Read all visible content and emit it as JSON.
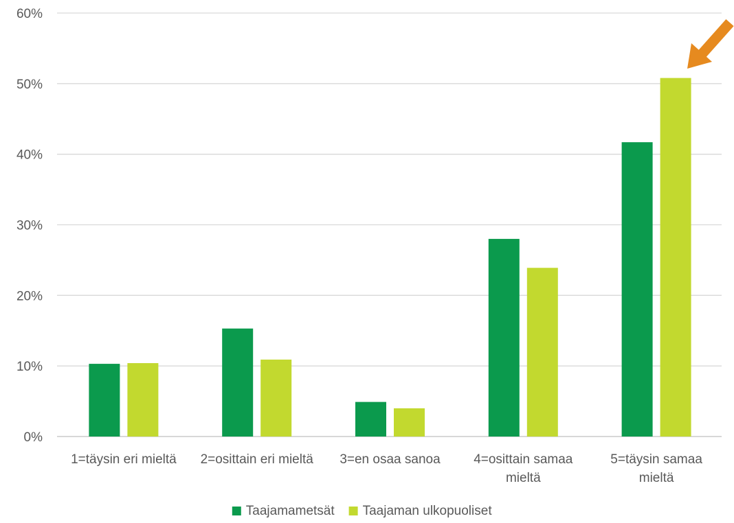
{
  "chart_data": {
    "type": "bar",
    "title": "",
    "xlabel": "",
    "ylabel": "",
    "ylim": [
      0,
      60
    ],
    "yticks": [
      "0%",
      "10%",
      "20%",
      "30%",
      "40%",
      "50%",
      "60%"
    ],
    "grid": true,
    "legend_position": "bottom",
    "categories": [
      [
        "1=täysin eri mieltä"
      ],
      [
        "2=osittain eri mieltä"
      ],
      [
        "3=en osaa sanoa"
      ],
      [
        "4=osittain samaa",
        "mieltä"
      ],
      [
        "5=täysin samaa",
        "mieltä"
      ]
    ],
    "series": [
      {
        "name": "Taajamametsät",
        "color": "#0b9a4d",
        "values": [
          10.3,
          15.3,
          4.9,
          28.0,
          41.7
        ]
      },
      {
        "name": "Taajaman ulkopuoliset",
        "color": "#c2d92f",
        "values": [
          10.4,
          10.9,
          4.0,
          23.9,
          50.8
        ]
      }
    ],
    "annotation": {
      "type": "arrow",
      "color": "#e68a1f",
      "target": "5=täysin samaa mieltä / Taajaman ulkopuoliset"
    }
  }
}
